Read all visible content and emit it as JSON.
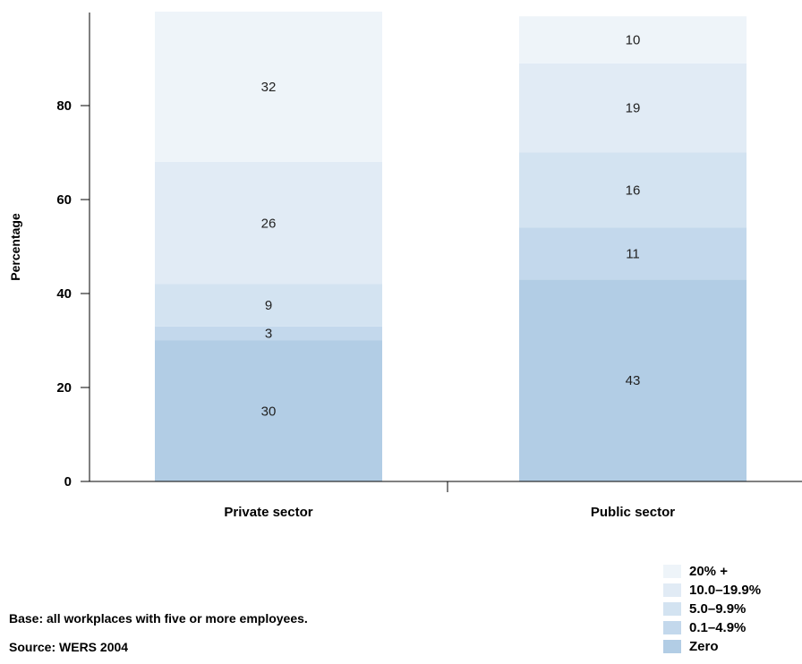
{
  "chart_data": {
    "type": "bar",
    "stacked": true,
    "categories": [
      "Private sector",
      "Public sector"
    ],
    "series": [
      {
        "name": "Zero",
        "values": [
          30,
          43
        ],
        "color": "#b2cde5"
      },
      {
        "name": "0.1–4.9%",
        "values": [
          3,
          11
        ],
        "color": "#c3d8ec"
      },
      {
        "name": "5.0–9.9%",
        "values": [
          9,
          16
        ],
        "color": "#d3e3f1"
      },
      {
        "name": "10.0–19.9%",
        "values": [
          26,
          19
        ],
        "color": "#e1ebf5"
      },
      {
        "name": "20% +",
        "values": [
          32,
          10
        ],
        "color": "#eef4f9"
      }
    ],
    "ylabel": "Percentage",
    "xlabel": "",
    "ylim": [
      0,
      100
    ],
    "yticks": [
      "0",
      "20",
      "40",
      "60",
      "80"
    ],
    "grid": false,
    "legend_position": "bottom-right"
  },
  "notes": {
    "base": "Base: all workplaces with five or more employees.",
    "source": "Source: WERS 2004"
  }
}
